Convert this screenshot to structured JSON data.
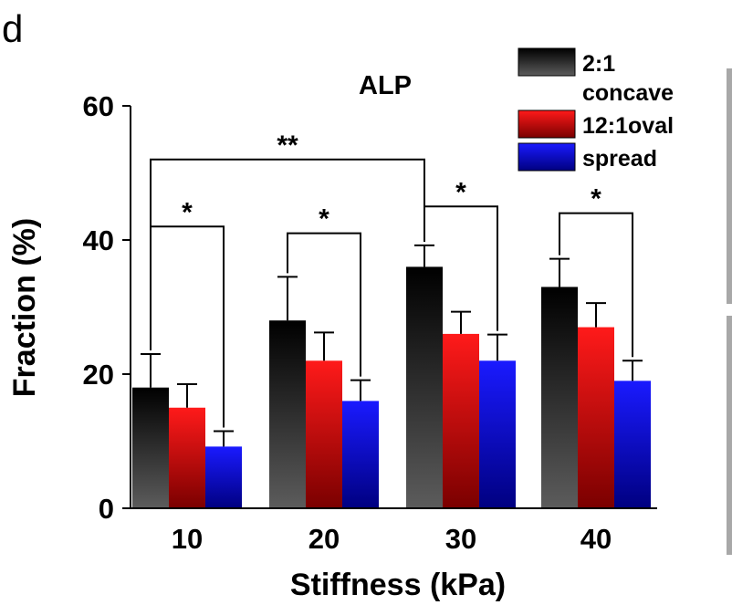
{
  "panel_label": "d",
  "chart_data": {
    "type": "bar",
    "title": "ALP",
    "xlabel": "Stiffness (kPa)",
    "ylabel": "Fraction (%)",
    "ylim": [
      0,
      60
    ],
    "yticks": [
      0,
      20,
      40,
      60
    ],
    "categories": [
      "10",
      "20",
      "30",
      "40"
    ],
    "series": [
      {
        "name": "2:1 concave",
        "legend_lines": [
          "2:1",
          "concave"
        ],
        "values": [
          18,
          28,
          36,
          33
        ],
        "errors": [
          5,
          6.5,
          3.2,
          4.2
        ],
        "colors": [
          "#000000",
          "#5c5c5c"
        ]
      },
      {
        "name": "12:1oval",
        "legend_lines": [
          "12:1oval"
        ],
        "values": [
          15,
          22,
          26,
          27
        ],
        "errors": [
          3.5,
          4.2,
          3.3,
          3.6
        ],
        "colors": [
          "#ff1a1a",
          "#7a0000"
        ]
      },
      {
        "name": "spread",
        "legend_lines": [
          "spread"
        ],
        "values": [
          9.2,
          16,
          22,
          19
        ],
        "errors": [
          2.3,
          3.1,
          3.9,
          3
        ],
        "colors": [
          "#1a1aff",
          "#000080"
        ]
      }
    ],
    "significance": [
      {
        "from_category": 0,
        "from_series": 0,
        "to_category": 0,
        "to_series": 2,
        "label": "*",
        "level": 42
      },
      {
        "from_category": 1,
        "from_series": 0,
        "to_category": 1,
        "to_series": 2,
        "label": "*",
        "level": 41
      },
      {
        "from_category": 2,
        "from_series": 0,
        "to_category": 2,
        "to_series": 2,
        "label": "*",
        "level": 45
      },
      {
        "from_category": 3,
        "from_series": 0,
        "to_category": 3,
        "to_series": 2,
        "label": "*",
        "level": 44
      },
      {
        "from_category": 0,
        "from_series": 0,
        "to_category": 2,
        "to_series": 0,
        "label": "**",
        "level": 52
      }
    ],
    "legend_position": "top-right",
    "grid": false
  }
}
